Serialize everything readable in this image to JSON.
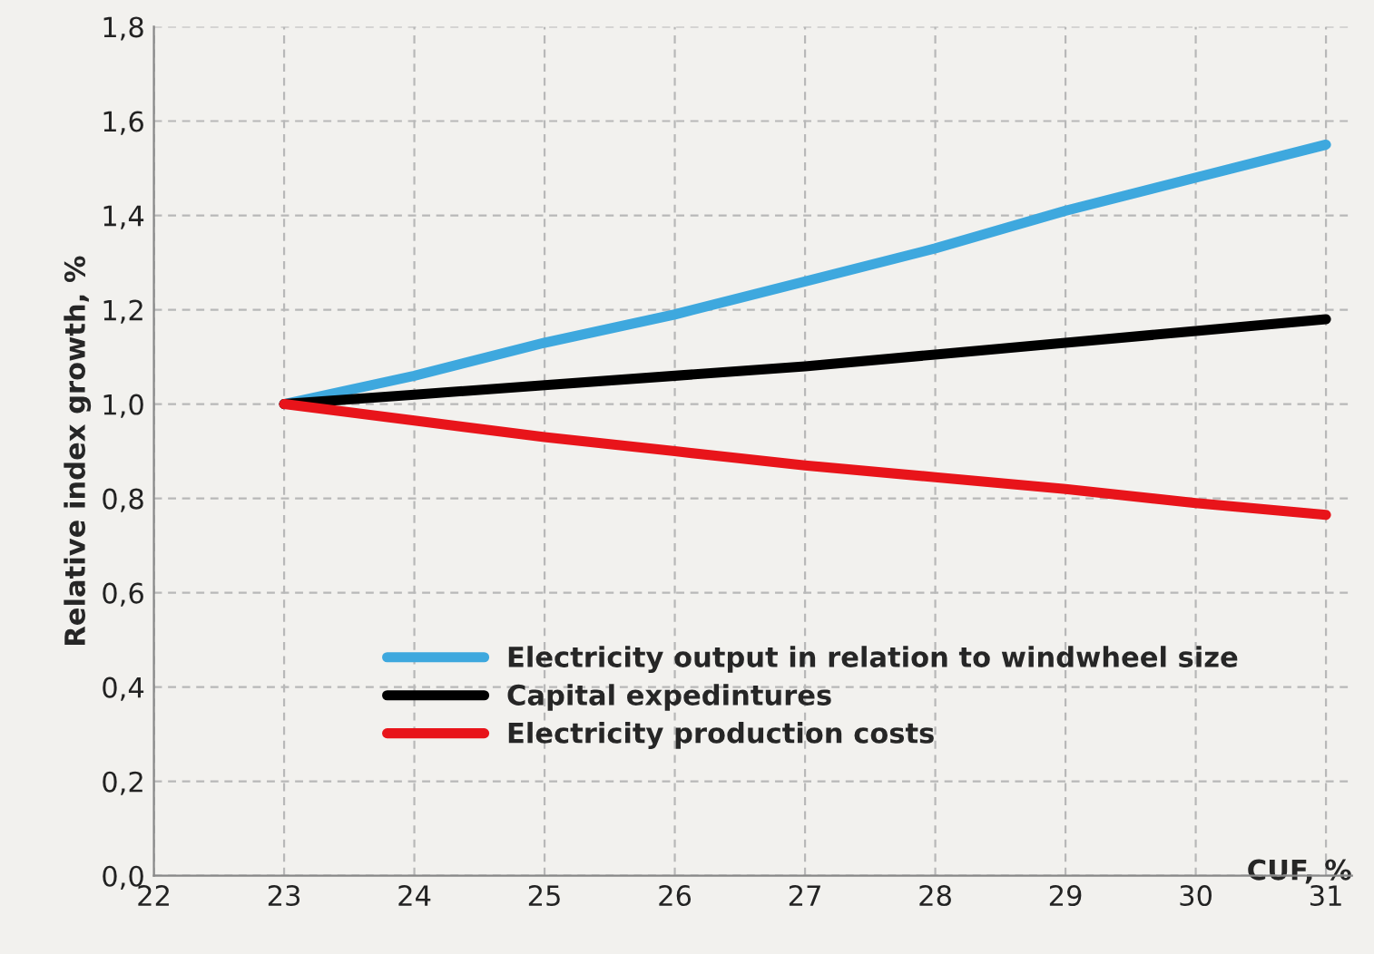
{
  "chart_data": {
    "type": "line",
    "xlabel": "CUF, %",
    "ylabel": "Relative index growth, %",
    "x": [
      23,
      24,
      25,
      26,
      27,
      28,
      29,
      30,
      31
    ],
    "series": [
      {
        "name": "Electricity output in relation to windwheel size",
        "color": "#3ea8de",
        "values": [
          1.0,
          1.06,
          1.13,
          1.19,
          1.26,
          1.33,
          1.41,
          1.48,
          1.55
        ]
      },
      {
        "name": "Capital expedintures",
        "color": "#000000",
        "values": [
          1.0,
          1.02,
          1.04,
          1.06,
          1.08,
          1.105,
          1.13,
          1.155,
          1.18
        ]
      },
      {
        "name": "Electricity production costs",
        "color": "#e8141a",
        "values": [
          1.0,
          0.965,
          0.93,
          0.9,
          0.87,
          0.845,
          0.82,
          0.79,
          0.765
        ]
      }
    ],
    "xlim": [
      22,
      31.2
    ],
    "xticks": [
      22,
      23,
      24,
      25,
      26,
      27,
      28,
      29,
      30,
      31
    ],
    "ylim": [
      0,
      1.8
    ],
    "yticks": [
      {
        "value": 0,
        "label": "0,0"
      },
      {
        "value": 0.2,
        "label": "0,2"
      },
      {
        "value": 0.4,
        "label": "0,4"
      },
      {
        "value": 0.6,
        "label": "0,6"
      },
      {
        "value": 0.8,
        "label": "0,8"
      },
      {
        "value": 1.0,
        "label": "1,0"
      },
      {
        "value": 1.2,
        "label": "1,2"
      },
      {
        "value": 1.4,
        "label": "1,4"
      },
      {
        "value": 1.6,
        "label": "1,6"
      },
      {
        "value": 1.8,
        "label": "1,8"
      }
    ],
    "grid": true,
    "legend": "bottom",
    "marker": "none",
    "line_style": "solid"
  }
}
